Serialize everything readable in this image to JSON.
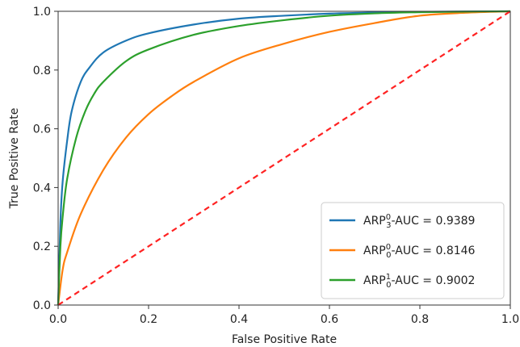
{
  "chart_data": {
    "type": "line",
    "xlabel": "False Positive Rate",
    "ylabel": "True Positive Rate",
    "xlim": [
      0.0,
      1.0
    ],
    "ylim": [
      0.0,
      1.0
    ],
    "xticks": [
      "0.0",
      "0.2",
      "0.4",
      "0.6",
      "0.8",
      "1.0"
    ],
    "yticks": [
      "0.0",
      "0.2",
      "0.4",
      "0.6",
      "0.8",
      "1.0"
    ],
    "grid": false,
    "legend_position": "lower-right",
    "series": [
      {
        "name": "ARP₃⁰-AUC = 0.9389",
        "legend_base": "ARP",
        "legend_sup": "0",
        "legend_sub": "3",
        "legend_tail": "-AUC = 0.9389",
        "color": "#1f77b4",
        "x": [
          0.0,
          0.005,
          0.01,
          0.02,
          0.03,
          0.05,
          0.07,
          0.1,
          0.15,
          0.2,
          0.3,
          0.4,
          0.5,
          0.6,
          0.7,
          0.8,
          0.9,
          1.0
        ],
        "y": [
          0.0,
          0.28,
          0.42,
          0.56,
          0.66,
          0.76,
          0.81,
          0.86,
          0.9,
          0.925,
          0.955,
          0.975,
          0.985,
          0.992,
          0.996,
          0.998,
          0.999,
          1.0
        ]
      },
      {
        "name": "ARP₀⁰-AUC = 0.8146",
        "legend_base": "ARP",
        "legend_sup": "0",
        "legend_sub": "0",
        "legend_tail": "-AUC = 0.8146",
        "color": "#ff7f0e",
        "x": [
          0.0,
          0.01,
          0.02,
          0.05,
          0.1,
          0.15,
          0.2,
          0.25,
          0.3,
          0.4,
          0.5,
          0.6,
          0.7,
          0.8,
          0.9,
          1.0
        ],
        "y": [
          0.0,
          0.12,
          0.18,
          0.31,
          0.46,
          0.57,
          0.65,
          0.71,
          0.76,
          0.84,
          0.89,
          0.93,
          0.96,
          0.985,
          0.995,
          1.0
        ]
      },
      {
        "name": "ARP₀¹-AUC = 0.9002",
        "legend_base": "ARP",
        "legend_sup": "1",
        "legend_sub": "0",
        "legend_tail": "-AUC = 0.9002",
        "color": "#2ca02c",
        "x": [
          0.0,
          0.005,
          0.01,
          0.02,
          0.04,
          0.06,
          0.08,
          0.1,
          0.15,
          0.2,
          0.3,
          0.4,
          0.5,
          0.6,
          0.7,
          0.8,
          0.9,
          1.0
        ],
        "y": [
          0.0,
          0.2,
          0.3,
          0.43,
          0.57,
          0.66,
          0.72,
          0.76,
          0.83,
          0.87,
          0.92,
          0.95,
          0.97,
          0.985,
          0.993,
          0.997,
          0.999,
          1.0
        ]
      },
      {
        "name": "",
        "color": "#ff2222",
        "dashed": true,
        "x": [
          0.0,
          1.0
        ],
        "y": [
          0.0,
          1.0
        ]
      }
    ]
  }
}
